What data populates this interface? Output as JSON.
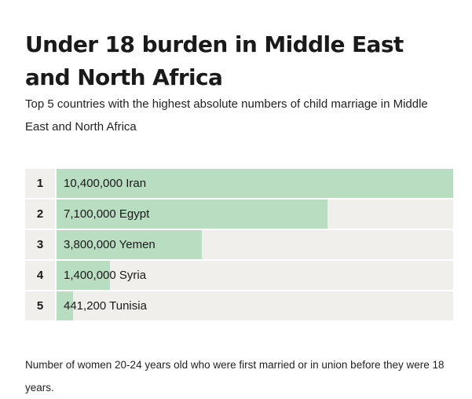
{
  "chart_data": {
    "type": "bar",
    "title": "Under 18 burden in Middle East and North Africa",
    "subtitle": "Top 5 countries with the highest absolute numbers of child marriage in Middle East and North Africa",
    "categories": [
      "Iran",
      "Egypt",
      "Yemen",
      "Syria",
      "Tunisia"
    ],
    "values": [
      10400000,
      7100000,
      3800000,
      1400000,
      441200
    ],
    "ranks": [
      "1",
      "2",
      "3",
      "4",
      "5"
    ],
    "labels": [
      "10,400,000 Iran",
      "7,100,000 Egypt",
      "3,800,000 Yemen",
      "1,400,000 Syria",
      "441,200 Tunisia"
    ],
    "xlim": [
      0,
      10400000
    ],
    "orientation": "horizontal",
    "grid": false,
    "footnote": "Number of women 20-24 years old who were first married or in union before they were 18 years.",
    "colors": {
      "bar": "#b9ddc1",
      "track": "#f1efeb"
    }
  }
}
